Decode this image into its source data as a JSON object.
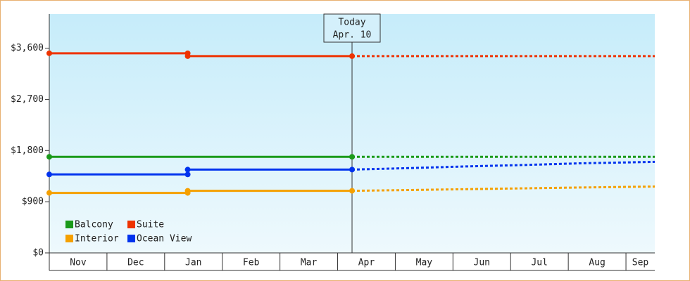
{
  "chart_data": {
    "type": "line",
    "categories": [
      "Nov",
      "Dec",
      "Jan",
      "Feb",
      "Mar",
      "Apr",
      "May",
      "Jun",
      "Jul",
      "Aug",
      "Sep"
    ],
    "xlim": [
      0,
      10.5
    ],
    "ylim": [
      0,
      4200
    ],
    "yticks": [
      {
        "value": 0,
        "label": "$0"
      },
      {
        "value": 900,
        "label": "$900"
      },
      {
        "value": 1800,
        "label": "$1,800"
      },
      {
        "value": 2700,
        "label": "$2,700"
      },
      {
        "value": 3600,
        "label": "$3,600"
      }
    ],
    "annotation": {
      "x": 5.25,
      "title": "Today",
      "label": "Apr. 10"
    },
    "series": [
      {
        "name": "Balcony",
        "color": "#1a9a1a",
        "x": [
          0,
          5.25
        ],
        "values": [
          1690,
          1690
        ],
        "forecast_x": [
          5.25,
          10.5
        ],
        "forecast_values": [
          1690,
          1690
        ]
      },
      {
        "name": "Suite",
        "color": "#ee3300",
        "x": [
          0,
          2.4,
          2.4,
          5.25
        ],
        "values": [
          3510,
          3510,
          3460,
          3460
        ],
        "forecast_x": [
          5.25,
          10.5
        ],
        "forecast_values": [
          3460,
          3460
        ]
      },
      {
        "name": "Interior",
        "color": "#f5a000",
        "x": [
          0,
          2.4,
          2.4,
          5.25
        ],
        "values": [
          1055,
          1055,
          1092,
          1092
        ],
        "forecast_x": [
          5.25,
          6.2,
          7.2,
          8.2,
          9.2,
          10.5
        ],
        "forecast_values": [
          1092,
          1105,
          1120,
          1135,
          1150,
          1167
        ]
      },
      {
        "name": "Ocean View",
        "color": "#0033ee",
        "x": [
          0,
          2.4,
          2.4,
          5.25
        ],
        "values": [
          1380,
          1380,
          1465,
          1465
        ],
        "forecast_x": [
          5.25,
          6.2,
          7.2,
          8.2,
          9.2,
          10.5
        ],
        "forecast_values": [
          1465,
          1490,
          1520,
          1545,
          1575,
          1601
        ]
      }
    ]
  }
}
